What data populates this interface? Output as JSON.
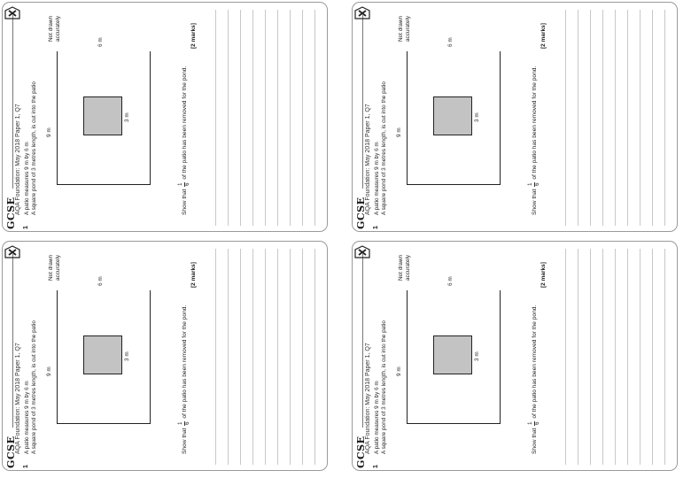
{
  "cards": [
    {
      "gcse": "GCSE",
      "question_number": "1",
      "meta": "AQA Foundation: May 2018 Paper 1, Q7",
      "line1": "A patio measures 9 m by 6 m",
      "line2": "A square pond of 3 metres length, is cut into the patio",
      "label_patio_width": "6 m",
      "label_patio_height": "9 m",
      "label_pond": "3 m",
      "not_drawn": "Not drawn accurately",
      "show_before": "Show that",
      "frac_num": "1",
      "frac_den": "6",
      "show_after": "of the patio has been removed for the pond.",
      "marks": "[2 marks]"
    },
    {
      "gcse": "GCSE",
      "question_number": "1",
      "meta": "AQA Foundation: May 2018 Paper 1, Q7",
      "line1": "A patio measures 9 m by 6 m",
      "line2": "A square pond of 3 metres length, is cut into the patio",
      "label_patio_width": "6 m",
      "label_patio_height": "9 m",
      "label_pond": "3 m",
      "not_drawn": "Not drawn accurately",
      "show_before": "Show that",
      "frac_num": "1",
      "frac_den": "6",
      "show_after": "of the patio has been removed for the pond.",
      "marks": "[2 marks]"
    },
    {
      "gcse": "GCSE",
      "question_number": "1",
      "meta": "AQA Foundation: May 2018 Paper 1, Q7",
      "line1": "A patio measures 9 m by 6 m",
      "line2": "A square pond of 3 metres length, is cut into the patio",
      "label_patio_width": "6 m",
      "label_patio_height": "9 m",
      "label_pond": "3 m",
      "not_drawn": "Not drawn accurately",
      "show_before": "Show that",
      "frac_num": "1",
      "frac_den": "6",
      "show_after": "of the patio has been removed for the pond.",
      "marks": "[2 marks]"
    },
    {
      "gcse": "GCSE",
      "question_number": "1",
      "meta": "AQA Foundation: May 2018 Paper 1, Q7",
      "line1": "A patio measures 9 m by 6 m",
      "line2": "A square pond of 3 metres length, is cut into the patio",
      "label_patio_width": "6 m",
      "label_patio_height": "9 m",
      "label_pond": "3 m",
      "not_drawn": "Not drawn accurately",
      "show_before": "Show that",
      "frac_num": "1",
      "frac_den": "6",
      "show_after": "of the patio has been removed for the pond.",
      "marks": "[2 marks]"
    }
  ]
}
